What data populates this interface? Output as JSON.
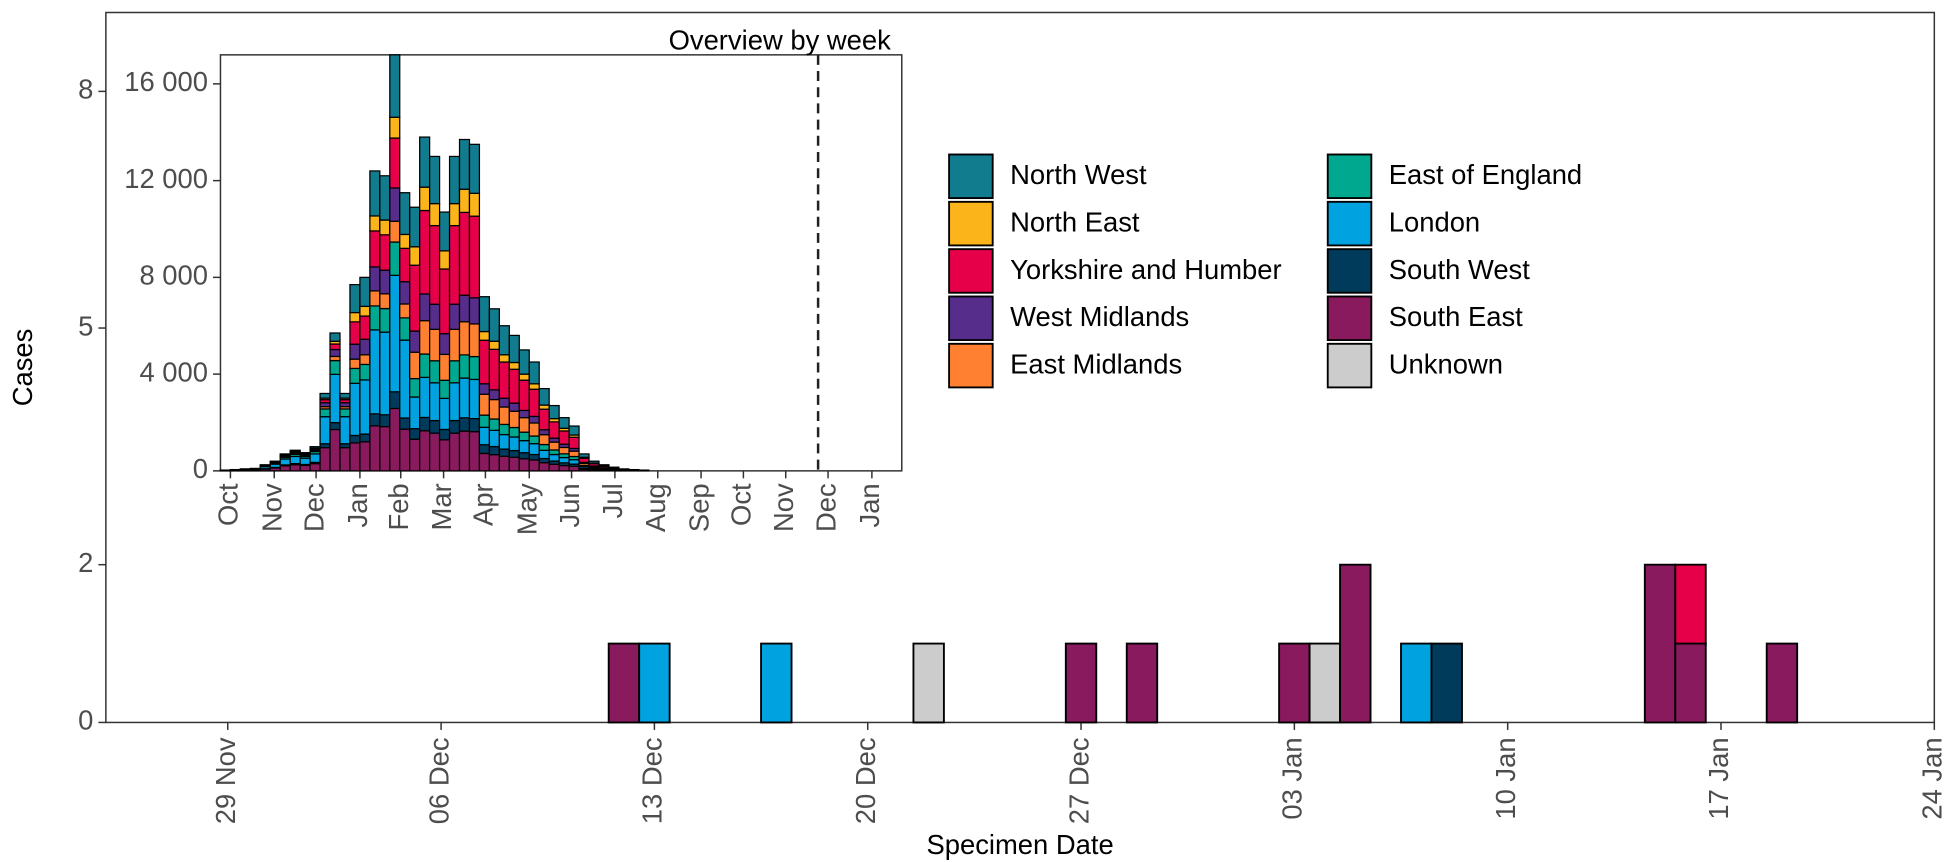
{
  "chart_data": [
    {
      "type": "bar",
      "stacked": true,
      "xlabel": "Specimen Date",
      "ylabel": "Cases",
      "x": [
        "12 Dec",
        "13 Dec",
        "17 Dec",
        "22 Dec",
        "27 Dec",
        "29 Dec",
        "03 Jan",
        "04 Jan",
        "05 Jan",
        "07 Jan",
        "08 Jan",
        "15 Jan",
        "16 Jan",
        "19 Jan"
      ],
      "xlim": [
        "25 Nov",
        "24 Jan"
      ],
      "xticks": [
        "29 Nov",
        "06 Dec",
        "13 Dec",
        "20 Dec",
        "27 Dec",
        "03 Jan",
        "10 Jan",
        "17 Jan",
        "24 Jan"
      ],
      "ylim": [
        0,
        9
      ],
      "yticks": [
        0,
        2,
        5,
        8
      ],
      "series": [
        {
          "name": "North West",
          "color": "#127c8f",
          "values": [
            0,
            0,
            0,
            0,
            0,
            0,
            0,
            0,
            0,
            0,
            0,
            0,
            0,
            0
          ]
        },
        {
          "name": "North East",
          "color": "#fbb51a",
          "values": [
            0,
            0,
            0,
            0,
            0,
            0,
            0,
            0,
            0,
            0,
            0,
            0,
            0,
            0
          ]
        },
        {
          "name": "Yorkshire and Humber",
          "color": "#e6004a",
          "values": [
            0,
            0,
            0,
            0,
            0,
            0,
            0,
            0,
            0,
            0,
            0,
            0,
            1,
            0
          ]
        },
        {
          "name": "West Midlands",
          "color": "#572d8c",
          "values": [
            0,
            0,
            0,
            0,
            0,
            0,
            0,
            0,
            0,
            0,
            0,
            0,
            0,
            0
          ]
        },
        {
          "name": "East Midlands",
          "color": "#ff8030",
          "values": [
            0,
            0,
            0,
            0,
            0,
            0,
            0,
            0,
            0,
            0,
            0,
            0,
            0,
            0
          ]
        },
        {
          "name": "East of England",
          "color": "#00a88f",
          "values": [
            0,
            0,
            0,
            0,
            0,
            0,
            0,
            0,
            0,
            0,
            0,
            0,
            0,
            0
          ]
        },
        {
          "name": "London",
          "color": "#00a3e0",
          "values": [
            0,
            1,
            1,
            0,
            0,
            0,
            0,
            0,
            0,
            1,
            0,
            0,
            0,
            0
          ]
        },
        {
          "name": "South West",
          "color": "#003b5c",
          "values": [
            0,
            0,
            0,
            0,
            0,
            0,
            0,
            0,
            0,
            0,
            1,
            0,
            0,
            0
          ]
        },
        {
          "name": "South East",
          "color": "#8a1a5e",
          "values": [
            1,
            0,
            0,
            0,
            1,
            1,
            1,
            0,
            2,
            0,
            0,
            2,
            1,
            1
          ]
        },
        {
          "name": "Unknown",
          "color": "#cccccc",
          "values": [
            0,
            0,
            0,
            1,
            0,
            0,
            0,
            1,
            0,
            0,
            0,
            0,
            0,
            0
          ]
        }
      ]
    },
    {
      "type": "bar",
      "stacked": true,
      "title": "Overview by week",
      "categories": [
        null,
        null,
        null,
        null,
        null,
        null,
        null,
        null,
        null,
        null,
        null,
        null,
        null,
        null,
        null,
        null,
        null,
        null,
        null,
        null,
        null,
        null,
        null,
        null,
        null,
        null,
        null,
        null,
        null,
        null,
        null,
        null,
        null,
        null,
        null,
        null,
        null,
        null,
        null,
        null,
        null,
        null,
        null
      ],
      "xlim": [
        0,
        68.4
      ],
      "xticks": [
        {
          "value": 1.0,
          "label": "Oct"
        },
        {
          "value": 5.4,
          "label": "Nov"
        },
        {
          "value": 9.6,
          "label": "Dec"
        },
        {
          "value": 14,
          "label": "Jan"
        },
        {
          "value": 18.1,
          "label": "Feb"
        },
        {
          "value": 22.4,
          "label": "Mar"
        },
        {
          "value": 26.6,
          "label": "Apr"
        },
        {
          "value": 31,
          "label": "May"
        },
        {
          "value": 35.25,
          "label": "Jun"
        },
        {
          "value": 39.6,
          "label": "Jul"
        },
        {
          "value": 43.9,
          "label": "Aug"
        },
        {
          "value": 48.25,
          "label": "Sep"
        },
        {
          "value": 52.5,
          "label": "Oct"
        },
        {
          "value": 56.75,
          "label": "Nov"
        },
        {
          "value": 61,
          "label": "Dec"
        },
        {
          "value": 65.4,
          "label": "Jan"
        }
      ],
      "vline": 60,
      "ylim": [
        0,
        17200
      ],
      "yticks": [
        0,
        {
          "value": 4000,
          "label": "4 000"
        },
        {
          "value": 8000,
          "label": "8 000"
        },
        {
          "value": 12000,
          "label": "12 000"
        },
        {
          "value": 16000,
          "label": "16 000"
        }
      ],
      "series": [
        {
          "color": "#127c8f",
          "values": [
            2,
            3,
            5,
            6,
            15,
            24,
            42,
            51,
            45,
            60,
            192,
            342,
            192,
            1155,
            1200,
            1860,
            1830,
            2580,
            1725,
            1635,
            2070,
            1950,
            1605,
            1950,
            2055,
            2025,
            1440,
            1340,
            1200,
            1120,
            1000,
            900,
            680,
            540,
            440,
            370,
            140,
            80,
            50,
            30,
            16,
            10,
            6
          ]
        },
        {
          "color": "#fbb51a",
          "values": [
            1,
            1,
            2,
            2,
            5,
            8,
            14,
            17,
            15,
            20,
            64,
            114,
            64,
            385,
            400,
            620,
            610,
            860,
            575,
            763,
            966,
            910,
            749,
            910,
            959,
            945,
            360,
            335,
            300,
            280,
            250,
            225,
            170,
            135,
            110,
            93,
            35,
            20,
            13,
            8,
            4,
            3,
            2
          ]
        },
        {
          "color": "#e6004a",
          "values": [
            1,
            2,
            3,
            4,
            10,
            16,
            28,
            34,
            30,
            40,
            128,
            228,
            128,
            924,
            960,
            1488,
            1464,
            2064,
            1380,
            2725,
            3450,
            3250,
            2675,
            3250,
            3425,
            3375,
            1800,
            1675,
            1500,
            1400,
            1250,
            1125,
            850,
            675,
            550,
            463,
            175,
            100,
            63,
            38,
            20,
            13,
            8
          ]
        },
        {
          "color": "#572d8c",
          "values": [
            2,
            3,
            4,
            5,
            13,
            20,
            35,
            43,
            38,
            50,
            160,
            285,
            160,
            616,
            640,
            992,
            976,
            1376,
            920,
            872,
            1104,
            1040,
            856,
            1040,
            1096,
            1080,
            432,
            402,
            360,
            336,
            300,
            270,
            204,
            162,
            132,
            111,
            42,
            24,
            15,
            9,
            5,
            3,
            2
          ]
        },
        {
          "color": "#ff8030",
          "values": [
            1,
            2,
            2,
            3,
            8,
            12,
            21,
            26,
            23,
            30,
            96,
            171,
            96,
            385,
            400,
            620,
            610,
            860,
            575,
            1090,
            1380,
            1300,
            1070,
            1300,
            1370,
            1350,
            864,
            804,
            720,
            672,
            600,
            540,
            408,
            324,
            264,
            222,
            84,
            48,
            30,
            18,
            10,
            6,
            4
          ]
        },
        {
          "color": "#00a88f",
          "values": [
            3,
            5,
            8,
            10,
            25,
            40,
            70,
            85,
            75,
            100,
            320,
            570,
            320,
            616,
            640,
            992,
            976,
            1376,
            920,
            763,
            966,
            910,
            749,
            910,
            959,
            945,
            504,
            469,
            420,
            392,
            350,
            315,
            238,
            189,
            154,
            130,
            49,
            28,
            18,
            11,
            6,
            4,
            2
          ]
        },
        {
          "color": "#00a3e0",
          "values": [
            11,
            18,
            28,
            35,
            88,
            140,
            245,
            298,
            263,
            350,
            1120,
            1995,
            1120,
            2156,
            2240,
            3472,
            3416,
            4816,
            3220,
            1308,
            1656,
            1560,
            1284,
            1560,
            1644,
            1620,
            720,
            670,
            600,
            560,
            500,
            450,
            340,
            270,
            220,
            185,
            70,
            40,
            25,
            15,
            8,
            5,
            3
          ]
        },
        {
          "color": "#003b5c",
          "values": [
            2,
            3,
            4,
            5,
            13,
            20,
            35,
            43,
            38,
            50,
            160,
            285,
            160,
            308,
            320,
            496,
            488,
            688,
            460,
            436,
            552,
            520,
            428,
            520,
            548,
            540,
            360,
            335,
            300,
            280,
            250,
            225,
            170,
            135,
            110,
            93,
            35,
            20,
            13,
            8,
            4,
            3,
            2
          ]
        },
        {
          "color": "#8a1a5e",
          "values": [
            9,
            15,
            24,
            30,
            75,
            120,
            210,
            255,
            225,
            300,
            960,
            1710,
            960,
            1155,
            1200,
            1860,
            1830,
            2580,
            1725,
            1308,
            1656,
            1560,
            1284,
            1560,
            1644,
            1620,
            720,
            670,
            600,
            560,
            500,
            450,
            340,
            270,
            220,
            185,
            70,
            40,
            25,
            15,
            8,
            5,
            3
          ]
        }
      ]
    }
  ]
}
